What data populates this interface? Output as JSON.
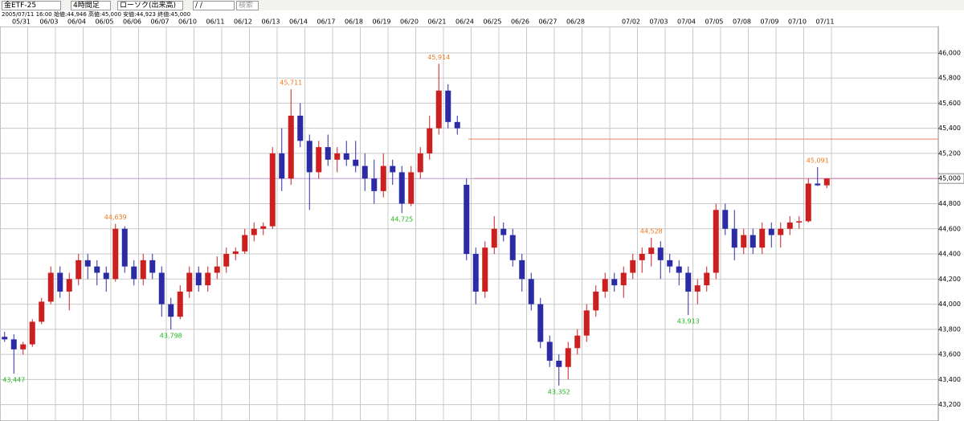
{
  "header": {
    "symbol": "金ETF-25",
    "period": "4時間足",
    "chart_kind": "ローソク(出来高)",
    "date_input": " /  / ",
    "button": "検索",
    "info": "2005/07/11 16:00 始値:44,946 高値:45,000 安値:44,923 終値:45,000"
  },
  "chart_data": {
    "type": "candlestick",
    "categories": [
      null,
      null,
      "05/31",
      null,
      null,
      "06/03",
      null,
      null,
      "06/04",
      null,
      null,
      "06/05",
      null,
      null,
      "06/06",
      null,
      null,
      "06/07",
      null,
      null,
      "06/10",
      null,
      null,
      "06/11",
      null,
      null,
      "06/12",
      null,
      null,
      "06/13",
      null,
      null,
      "06/14",
      null,
      null,
      "06/17",
      null,
      null,
      "06/18",
      null,
      null,
      "06/19",
      null,
      null,
      "06/20",
      null,
      null,
      "06/21",
      null,
      null,
      "06/24",
      null,
      null,
      "06/25",
      null,
      null,
      "06/26",
      null,
      null,
      "06/27",
      null,
      null,
      "06/28",
      null,
      null,
      null,
      null,
      null,
      "07/02",
      null,
      null,
      "07/03",
      null,
      null,
      "07/04",
      null,
      null,
      "07/05",
      null,
      null,
      "07/08",
      null,
      null,
      "07/09",
      null,
      null,
      "07/10",
      null,
      null,
      "07/11"
    ],
    "open": [
      43740,
      43720,
      43640,
      43680,
      43860,
      44020,
      44250,
      44100,
      44200,
      44350,
      44300,
      44250,
      44200,
      44600,
      44300,
      44200,
      44350,
      44250,
      44000,
      43900,
      44100,
      44250,
      44150,
      44250,
      44300,
      44400,
      44420,
      44550,
      44600,
      44620,
      45200,
      45000,
      45500,
      45300,
      45050,
      45250,
      45150,
      45200,
      45150,
      45100,
      45000,
      44900,
      45100,
      45050,
      44800,
      45050,
      45200,
      45400,
      45700,
      45450,
      44950,
      44400,
      44100,
      44450,
      44600,
      44550,
      44350,
      44200,
      44000,
      43700,
      43550,
      43500,
      43650,
      43750,
      43950,
      44100,
      44200,
      44150,
      44250,
      44350,
      44400,
      44450,
      44350,
      44300,
      44250,
      44100,
      44150,
      44250,
      44750,
      44600,
      44450,
      44550,
      44450,
      44600,
      44550,
      44600,
      44650,
      44660,
      44960,
      44946
    ],
    "high": [
      43780,
      43760,
      43700,
      43880,
      44050,
      44300,
      44300,
      44250,
      44400,
      44400,
      44350,
      44300,
      44639,
      44620,
      44350,
      44400,
      44400,
      44300,
      44050,
      44150,
      44300,
      44300,
      44300,
      44380,
      44450,
      44450,
      44600,
      44650,
      44650,
      45250,
      45400,
      45711,
      45600,
      45350,
      45300,
      45350,
      45250,
      45300,
      45300,
      45200,
      45150,
      45200,
      45150,
      45100,
      45100,
      45250,
      45500,
      45914,
      45750,
      45500,
      45000,
      44450,
      44500,
      44700,
      44650,
      44600,
      44400,
      44250,
      44050,
      43750,
      43600,
      43700,
      43800,
      44000,
      44150,
      44250,
      44250,
      44300,
      44400,
      44450,
      44528,
      44500,
      44400,
      44350,
      44300,
      44200,
      44300,
      44800,
      44800,
      44750,
      44600,
      44600,
      44650,
      44650,
      44650,
      44700,
      44700,
      45000,
      45091,
      45000
    ],
    "low": [
      43700,
      43447,
      43600,
      43660,
      43840,
      44000,
      44050,
      43950,
      44150,
      44200,
      44150,
      44100,
      44180,
      44250,
      44150,
      44150,
      44200,
      43900,
      43798,
      43880,
      44050,
      44100,
      44100,
      44200,
      44250,
      44350,
      44400,
      44500,
      44550,
      44600,
      44900,
      44950,
      45250,
      44750,
      45000,
      45100,
      45050,
      45100,
      45050,
      44900,
      44800,
      44850,
      44950,
      44725,
      44780,
      45000,
      45150,
      45350,
      45400,
      45350,
      44350,
      44000,
      44050,
      44400,
      44500,
      44300,
      44100,
      43950,
      43650,
      43500,
      43352,
      43400,
      43600,
      43700,
      43900,
      44050,
      44100,
      44050,
      44200,
      44250,
      44300,
      44200,
      44250,
      44150,
      43913,
      44000,
      44100,
      44200,
      44550,
      44350,
      44400,
      44400,
      44400,
      44450,
      44450,
      44550,
      44600,
      44650,
      44940,
      44923
    ],
    "close": [
      43720,
      43640,
      43680,
      43860,
      44020,
      44250,
      44100,
      44200,
      44350,
      44300,
      44250,
      44200,
      44600,
      44300,
      44200,
      44350,
      44250,
      44000,
      43900,
      44100,
      44250,
      44150,
      44250,
      44300,
      44400,
      44420,
      44550,
      44600,
      44620,
      45200,
      45000,
      45500,
      45300,
      45050,
      45250,
      45150,
      45200,
      45150,
      45100,
      45000,
      44900,
      45100,
      45050,
      44800,
      45050,
      45200,
      45400,
      45700,
      45450,
      45400,
      44400,
      44100,
      44450,
      44600,
      44550,
      44350,
      44200,
      44000,
      43700,
      43550,
      43500,
      43650,
      43750,
      43950,
      44100,
      44200,
      44150,
      44250,
      44350,
      44400,
      44450,
      44350,
      44300,
      44250,
      44100,
      44150,
      44250,
      44750,
      44600,
      44450,
      44550,
      44450,
      44600,
      44550,
      44600,
      44650,
      44660,
      44960,
      44946,
      45000
    ],
    "up_color": "#cc1f1f",
    "down_color": "#2b2ba6",
    "ylim": [
      43070,
      46210
    ],
    "yticks": [
      {
        "value": 43200,
        "label": "43,200"
      },
      {
        "value": 43400,
        "label": "43,400"
      },
      {
        "value": 43600,
        "label": "43,600"
      },
      {
        "value": 43800,
        "label": "43,800"
      },
      {
        "value": 44000,
        "label": "44,000"
      },
      {
        "value": 44200,
        "label": "44,200"
      },
      {
        "value": 44400,
        "label": "44,400"
      },
      {
        "value": 44600,
        "label": "44,600"
      },
      {
        "value": 44800,
        "label": "44,800"
      },
      {
        "value": 45000,
        "label": "45,000"
      },
      {
        "value": 45200,
        "label": "45,200"
      },
      {
        "value": 45400,
        "label": "45,400"
      },
      {
        "value": 45600,
        "label": "45,600"
      },
      {
        "value": 45800,
        "label": "45,800"
      },
      {
        "value": 46000,
        "label": "46,000"
      }
    ],
    "grid": true,
    "annotations": [
      {
        "value": 43447,
        "label": "43,447"
      },
      {
        "value": 44639,
        "label": "44,639"
      },
      {
        "value": 43798,
        "label": "43,798"
      },
      {
        "value": 45711,
        "label": "45,711"
      },
      {
        "value": 44725,
        "label": "44,725"
      },
      {
        "value": 45914,
        "label": "45,914"
      },
      {
        "value": 43352,
        "label": "43,352"
      },
      {
        "value": 44528,
        "label": "44,528"
      },
      {
        "value": 43913,
        "label": "43,913"
      },
      {
        "value": 45091,
        "label": "45,091"
      }
    ],
    "high_label_color": "#f07820",
    "low_label_color": "#22b822",
    "reference_lines": [
      {
        "value": 45314,
        "color": "#f08060"
      },
      {
        "value": 45000,
        "color": "#f08060"
      }
    ],
    "last_price": {
      "value": 45000,
      "label": "45,000",
      "color": "#c080e0"
    }
  }
}
